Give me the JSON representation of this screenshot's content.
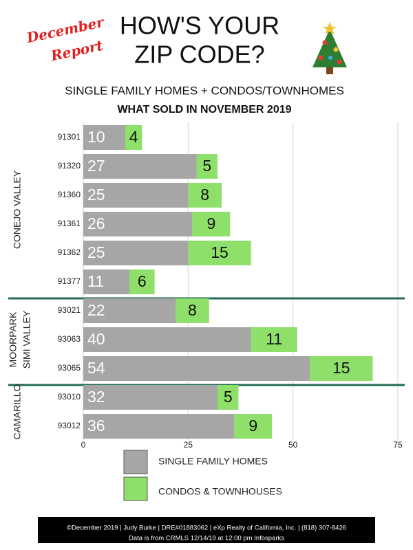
{
  "chart_data": {
    "type": "stacked-bar",
    "badge": [
      "December",
      "Report"
    ],
    "title": [
      "HOW'S YOUR",
      "ZIP CODE?"
    ],
    "subtitle": "SINGLE FAMILY HOMES + CONDOS/TOWNHOMES",
    "heading": "WHAT SOLD IN NOVEMBER 2019",
    "xlim": [
      0,
      75
    ],
    "xticks": [
      0,
      25,
      50,
      75
    ],
    "grid": true,
    "series": [
      {
        "name": "SINGLE FAMILY HOMES",
        "color": "#a6a6a6",
        "label_color": "#ffffff"
      },
      {
        "name": "CONDOS & TOWNHOUSES",
        "color": "#8ee06a",
        "label_color": "#111111"
      }
    ],
    "groups": [
      {
        "labels": [
          "CONEJO VALLEY"
        ],
        "categories": [
          "91301",
          "91320",
          "91360",
          "91361",
          "91362",
          "91377"
        ],
        "values": [
          [
            10,
            27,
            25,
            26,
            25,
            11
          ],
          [
            4,
            5,
            8,
            9,
            15,
            6
          ]
        ]
      },
      {
        "labels": [
          "MOORPARK",
          "SIMI VALLEY"
        ],
        "categories": [
          "93021",
          "93063",
          "93065"
        ],
        "values": [
          [
            22,
            40,
            54
          ],
          [
            8,
            11,
            15
          ]
        ]
      },
      {
        "labels": [
          "CAMARILLO"
        ],
        "categories": [
          "93010",
          "93012"
        ],
        "values": [
          [
            32,
            36
          ],
          [
            5,
            9
          ]
        ]
      }
    ],
    "footer": [
      "©December 2019  |  Judy Burke  |  DRE#01883062  |  eXp Realty of California, Inc.  |  (818) 307-8426",
      "Data is from CRMLS 12/14/19 at 12:00 pm Infosparks"
    ]
  }
}
